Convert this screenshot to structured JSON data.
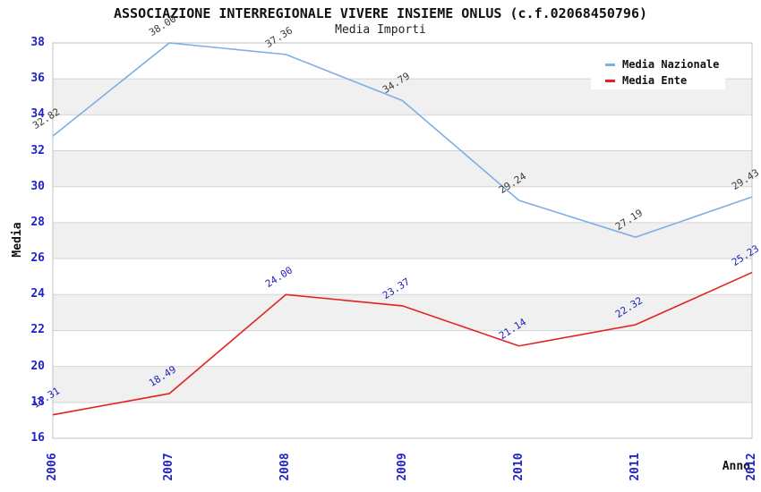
{
  "title": "ASSOCIAZIONE INTERREGIONALE VIVERE INSIEME ONLUS (c.f.02068450796)",
  "subtitle": "Media Importi",
  "chart_data": {
    "type": "line",
    "x": [
      2006,
      2007,
      2008,
      2009,
      2010,
      2011,
      2012
    ],
    "series": [
      {
        "name": "Media Nazionale",
        "color": "#7FAEE3",
        "label_color": "#3a3a3a",
        "values": [
          32.82,
          38.0,
          37.36,
          34.79,
          29.24,
          27.19,
          29.43
        ]
      },
      {
        "name": "Media Ente",
        "color": "#E02220",
        "label_color": "#2222BB",
        "values": [
          17.31,
          18.49,
          24.0,
          23.37,
          21.14,
          22.32,
          25.23
        ]
      }
    ],
    "xlabel": "Anno",
    "ylabel": "Media",
    "ylim": [
      16,
      38
    ],
    "ytick_step": 2,
    "grid": true,
    "legend_position": "top-right",
    "tick_label_color": "#2222CC",
    "grid_color": "#d4d4d4",
    "border_color": "#c2c2c2",
    "band_colors": [
      "#ffffff",
      "#f0f0f0"
    ]
  }
}
